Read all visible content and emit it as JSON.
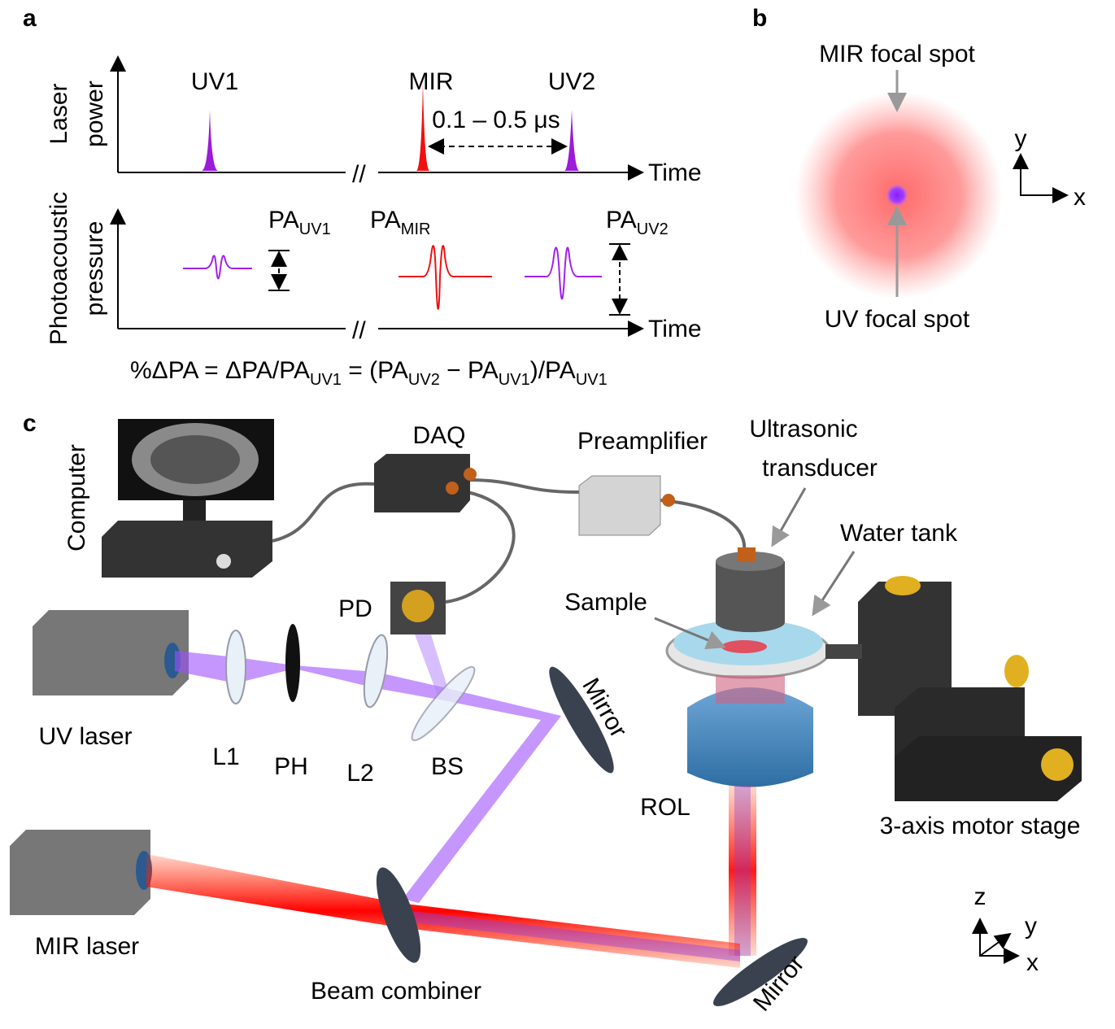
{
  "panel_a": {
    "letter": "a",
    "top_axis_label": [
      "Laser",
      "power"
    ],
    "pulse_labels": [
      "UV1",
      "MIR",
      "UV2"
    ],
    "delay_label": "0.1 – 0.5 μs",
    "time_labels": [
      "Time",
      "Time"
    ],
    "break_marks": [
      "//",
      "//"
    ],
    "bottom_axis_label": [
      "Photoacoustic",
      "pressure"
    ],
    "pa_labels": [
      {
        "main": "PA",
        "sub": "UV1"
      },
      {
        "main": "PA",
        "sub": "MIR"
      },
      {
        "main": "PA",
        "sub": "UV2"
      }
    ],
    "formula": [
      {
        "text": "%ΔPA = ΔPA/PA"
      },
      {
        "sub": "UV1"
      },
      {
        "text": " = (PA"
      },
      {
        "sub": "UV2"
      },
      {
        "text": " − PA"
      },
      {
        "sub": "UV1"
      },
      {
        "text": ")/PA"
      },
      {
        "sub": "UV1"
      }
    ]
  },
  "panel_b": {
    "letter": "b",
    "mir_spot": "MIR focal spot",
    "uv_spot": "UV focal spot",
    "axis_y": "y",
    "axis_x": "x"
  },
  "panel_c": {
    "letter": "c",
    "labels": {
      "computer": "Computer",
      "daq": "DAQ",
      "preamplifier": "Preamplifier",
      "transducer": [
        "Ultrasonic",
        "transducer"
      ],
      "water_tank": "Water tank",
      "sample": "Sample",
      "pd": "PD",
      "uv_laser": "UV laser",
      "l1": "L1",
      "ph": "PH",
      "l2": "L2",
      "bs": "BS",
      "mirror_top": "Mirror",
      "rol": "ROL",
      "stage": "3-axis motor stage",
      "mir_laser": "MIR laser",
      "beam_combiner": "Beam combiner",
      "mirror_bottom": "Mirror"
    },
    "axes": [
      "z",
      "y",
      "x"
    ]
  }
}
